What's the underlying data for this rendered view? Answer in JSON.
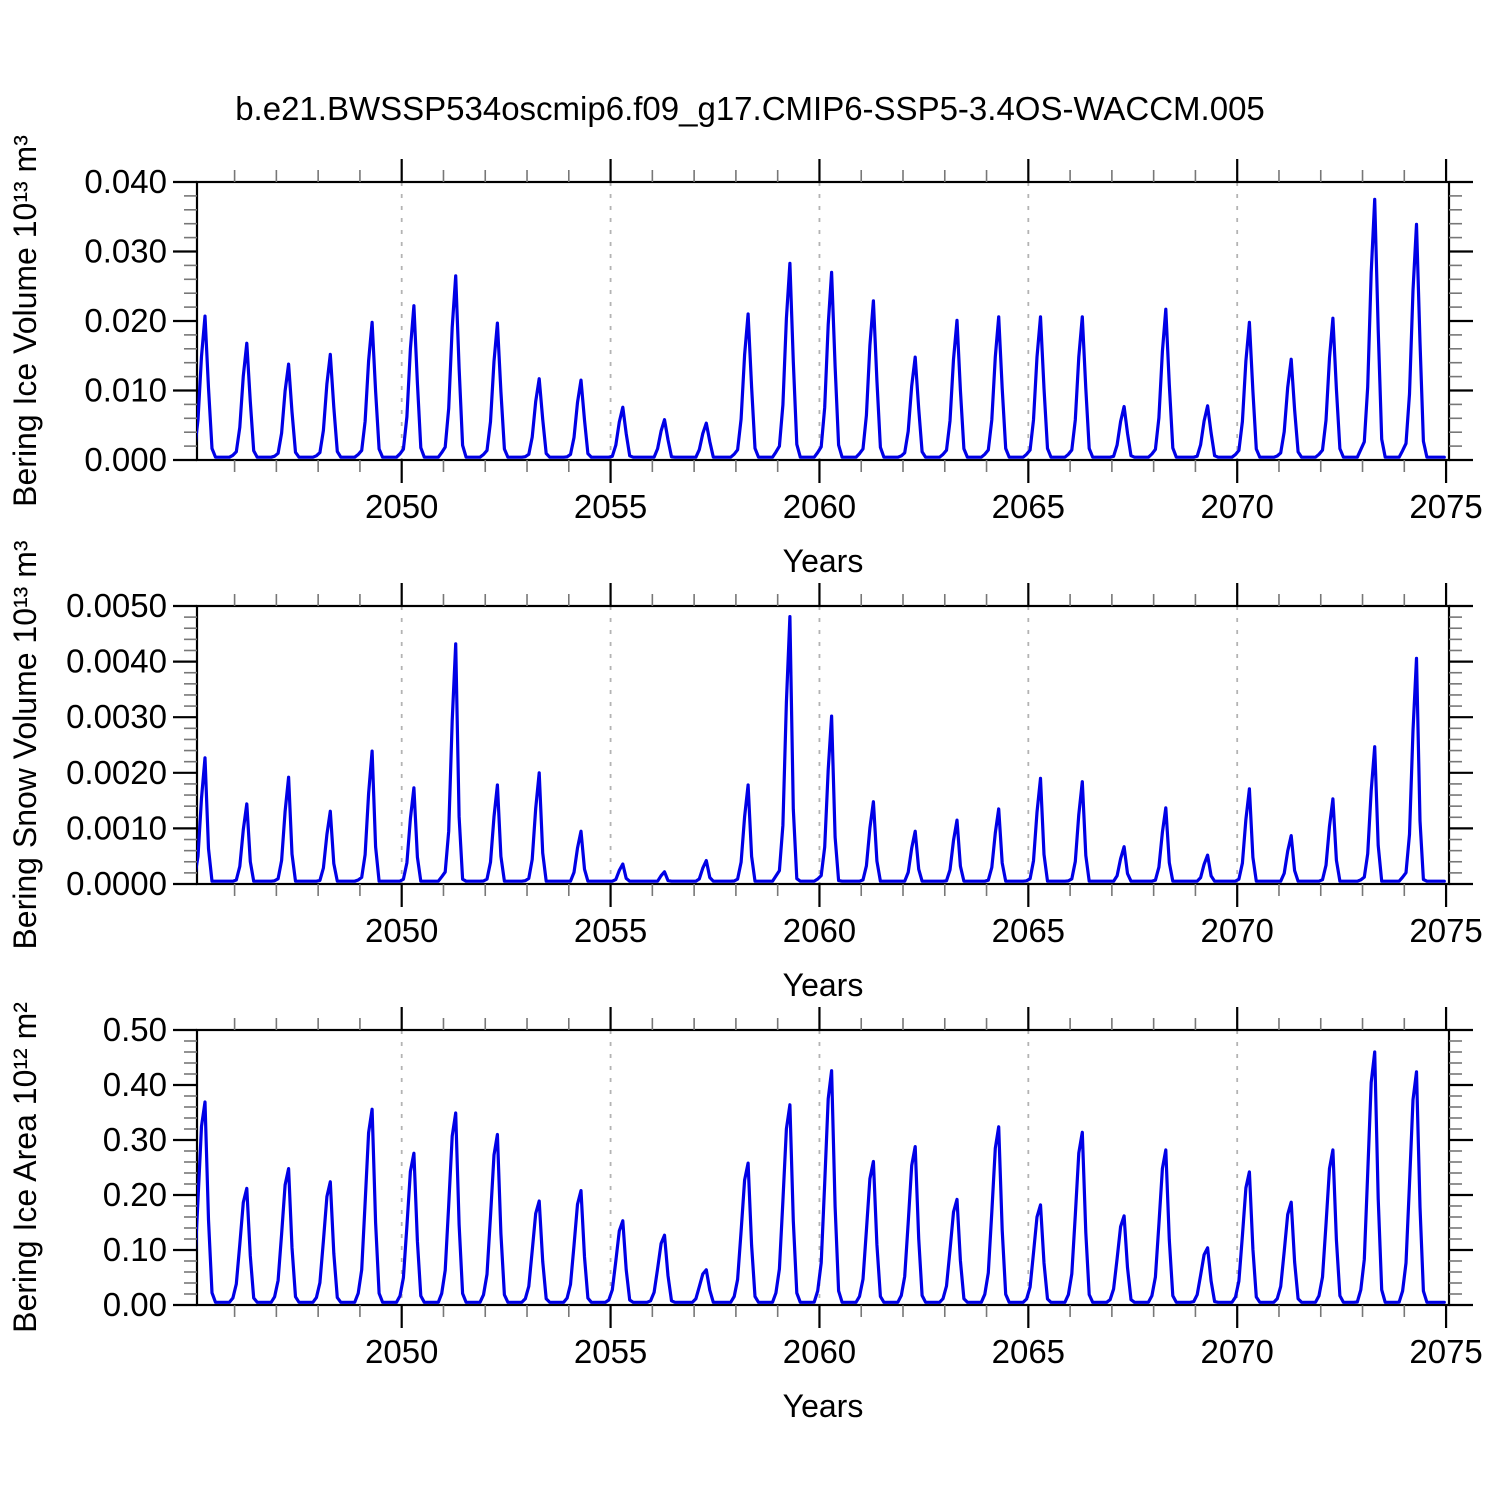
{
  "title": "b.e21.BWSSP534oscmip6.f09_g17.CMIP6-SSP5-3.4OS-WACCM.005",
  "colors": {
    "line": "#0000e6",
    "grid": "#b3b3b3",
    "axis": "#000000",
    "minor_tick": "#777777",
    "background": "#ffffff"
  },
  "chart_data": [
    {
      "type": "line",
      "ylabel": "Bering Ice Volume 10¹³ m³",
      "xlabel": "Years",
      "ylim": [
        0,
        0.04
      ],
      "xlim": [
        2045.1,
        2075.07
      ],
      "grid": "vertical-dashed",
      "legend_position": "none",
      "y_axis": {
        "max": 0.04,
        "minor_step": 0.002,
        "ticks": [
          {
            "v": 0.0,
            "label": "0.000"
          },
          {
            "v": 0.01,
            "label": "0.010"
          },
          {
            "v": 0.02,
            "label": "0.020"
          },
          {
            "v": 0.03,
            "label": "0.030"
          },
          {
            "v": 0.04,
            "label": "0.040"
          }
        ]
      },
      "x_axis": {
        "ticks": [
          {
            "v": 2050,
            "label": "2050"
          },
          {
            "v": 2055,
            "label": "2055"
          },
          {
            "v": 2060,
            "label": "2060"
          },
          {
            "v": 2065,
            "label": "2065"
          },
          {
            "v": 2070,
            "label": "2070"
          },
          {
            "v": 2075,
            "label": "2075"
          }
        ],
        "minor_step_years": 1,
        "gridline_years": [
          2050,
          2055,
          2060,
          2065,
          2070
        ]
      },
      "series": {
        "name": "Bering Ice Volume",
        "description": "Monthly seasonal cycle: near-zero each summer, annual late-winter maximum",
        "years": [
          2045,
          2046,
          2047,
          2048,
          2049,
          2050,
          2051,
          2052,
          2053,
          2054,
          2055,
          2056,
          2057,
          2058,
          2059,
          2060,
          2061,
          2062,
          2063,
          2064,
          2065,
          2066,
          2067,
          2068,
          2069,
          2070,
          2071,
          2072,
          2073,
          2074
        ],
        "annual_peaks": [
          0.0207,
          0.0168,
          0.0138,
          0.0152,
          0.0198,
          0.0222,
          0.0265,
          0.0197,
          0.0117,
          0.0115,
          0.0076,
          0.0058,
          0.0053,
          0.021,
          0.0283,
          0.027,
          0.0229,
          0.0148,
          0.0201,
          0.0206,
          0.0206,
          0.0206,
          0.0077,
          0.0217,
          0.0078,
          0.0198,
          0.0145,
          0.0204,
          0.0375,
          0.0339
        ],
        "monthly_shape": [
          0.07,
          0.28,
          0.72,
          1.0,
          0.5,
          0.08,
          0.01,
          0.01,
          0.01,
          0.01,
          0.01,
          0.04
        ]
      }
    },
    {
      "type": "line",
      "ylabel": "Bering Snow Volume 10¹³ m³",
      "xlabel": "Years",
      "ylim": [
        0,
        0.005
      ],
      "xlim": [
        2045.1,
        2075.07
      ],
      "grid": "vertical-dashed",
      "legend_position": "none",
      "y_axis": {
        "max": 0.005,
        "minor_step": 0.0002,
        "ticks": [
          {
            "v": 0.0,
            "label": "0.0000"
          },
          {
            "v": 0.001,
            "label": "0.0010"
          },
          {
            "v": 0.002,
            "label": "0.0020"
          },
          {
            "v": 0.003,
            "label": "0.0030"
          },
          {
            "v": 0.004,
            "label": "0.0040"
          },
          {
            "v": 0.005,
            "label": "0.0050"
          }
        ]
      },
      "x_axis": {
        "ticks": [
          {
            "v": 2050,
            "label": "2050"
          },
          {
            "v": 2055,
            "label": "2055"
          },
          {
            "v": 2060,
            "label": "2060"
          },
          {
            "v": 2065,
            "label": "2065"
          },
          {
            "v": 2070,
            "label": "2070"
          },
          {
            "v": 2075,
            "label": "2075"
          }
        ],
        "minor_step_years": 1,
        "gridline_years": [
          2050,
          2055,
          2060,
          2065,
          2070
        ]
      },
      "series": {
        "name": "Bering Snow Volume",
        "description": "Monthly seasonal cycle: near-zero each summer, annual late-winter maximum",
        "years": [
          2045,
          2046,
          2047,
          2048,
          2049,
          2050,
          2051,
          2052,
          2053,
          2054,
          2055,
          2056,
          2057,
          2058,
          2059,
          2060,
          2061,
          2062,
          2063,
          2064,
          2065,
          2066,
          2067,
          2068,
          2069,
          2070,
          2071,
          2072,
          2073,
          2074
        ],
        "annual_peaks": [
          0.00227,
          0.00144,
          0.00192,
          0.00131,
          0.00239,
          0.00173,
          0.00432,
          0.00178,
          0.002,
          0.00095,
          0.00036,
          0.00022,
          0.00042,
          0.00178,
          0.00481,
          0.00302,
          0.00148,
          0.00095,
          0.00115,
          0.00135,
          0.0019,
          0.00184,
          0.00067,
          0.00137,
          0.00052,
          0.00171,
          0.00087,
          0.00153,
          0.00247,
          0.00406
        ],
        "monthly_shape": [
          0.05,
          0.22,
          0.68,
          1.0,
          0.28,
          0.02,
          0.005,
          0.005,
          0.005,
          0.005,
          0.008,
          0.03
        ]
      }
    },
    {
      "type": "line",
      "ylabel": "Bering Ice Area 10¹² m²",
      "xlabel": "Years",
      "ylim": [
        0,
        0.5
      ],
      "xlim": [
        2045.1,
        2075.07
      ],
      "grid": "vertical-dashed",
      "legend_position": "none",
      "y_axis": {
        "max": 0.5,
        "minor_step": 0.02,
        "ticks": [
          {
            "v": 0.0,
            "label": "0.00"
          },
          {
            "v": 0.1,
            "label": "0.10"
          },
          {
            "v": 0.2,
            "label": "0.20"
          },
          {
            "v": 0.3,
            "label": "0.30"
          },
          {
            "v": 0.4,
            "label": "0.40"
          },
          {
            "v": 0.5,
            "label": "0.50"
          }
        ]
      },
      "x_axis": {
        "ticks": [
          {
            "v": 2050,
            "label": "2050"
          },
          {
            "v": 2055,
            "label": "2055"
          },
          {
            "v": 2060,
            "label": "2060"
          },
          {
            "v": 2065,
            "label": "2065"
          },
          {
            "v": 2070,
            "label": "2070"
          },
          {
            "v": 2075,
            "label": "2075"
          }
        ],
        "minor_step_years": 1,
        "gridline_years": [
          2050,
          2055,
          2060,
          2065,
          2070
        ]
      },
      "series": {
        "name": "Bering Ice Area",
        "description": "Monthly seasonal cycle: near-zero each summer, annual late-winter maximum",
        "years": [
          2045,
          2046,
          2047,
          2048,
          2049,
          2050,
          2051,
          2052,
          2053,
          2054,
          2055,
          2056,
          2057,
          2058,
          2059,
          2060,
          2061,
          2062,
          2063,
          2064,
          2065,
          2066,
          2067,
          2068,
          2069,
          2070,
          2071,
          2072,
          2073,
          2074
        ],
        "annual_peaks": [
          0.369,
          0.212,
          0.248,
          0.224,
          0.356,
          0.276,
          0.349,
          0.31,
          0.189,
          0.208,
          0.153,
          0.127,
          0.064,
          0.258,
          0.364,
          0.426,
          0.261,
          0.288,
          0.192,
          0.324,
          0.182,
          0.314,
          0.162,
          0.282,
          0.104,
          0.242,
          0.187,
          0.282,
          0.46,
          0.424
        ],
        "monthly_shape": [
          0.18,
          0.52,
          0.88,
          1.0,
          0.42,
          0.06,
          0.01,
          0.01,
          0.01,
          0.01,
          0.012,
          0.06
        ]
      }
    }
  ]
}
